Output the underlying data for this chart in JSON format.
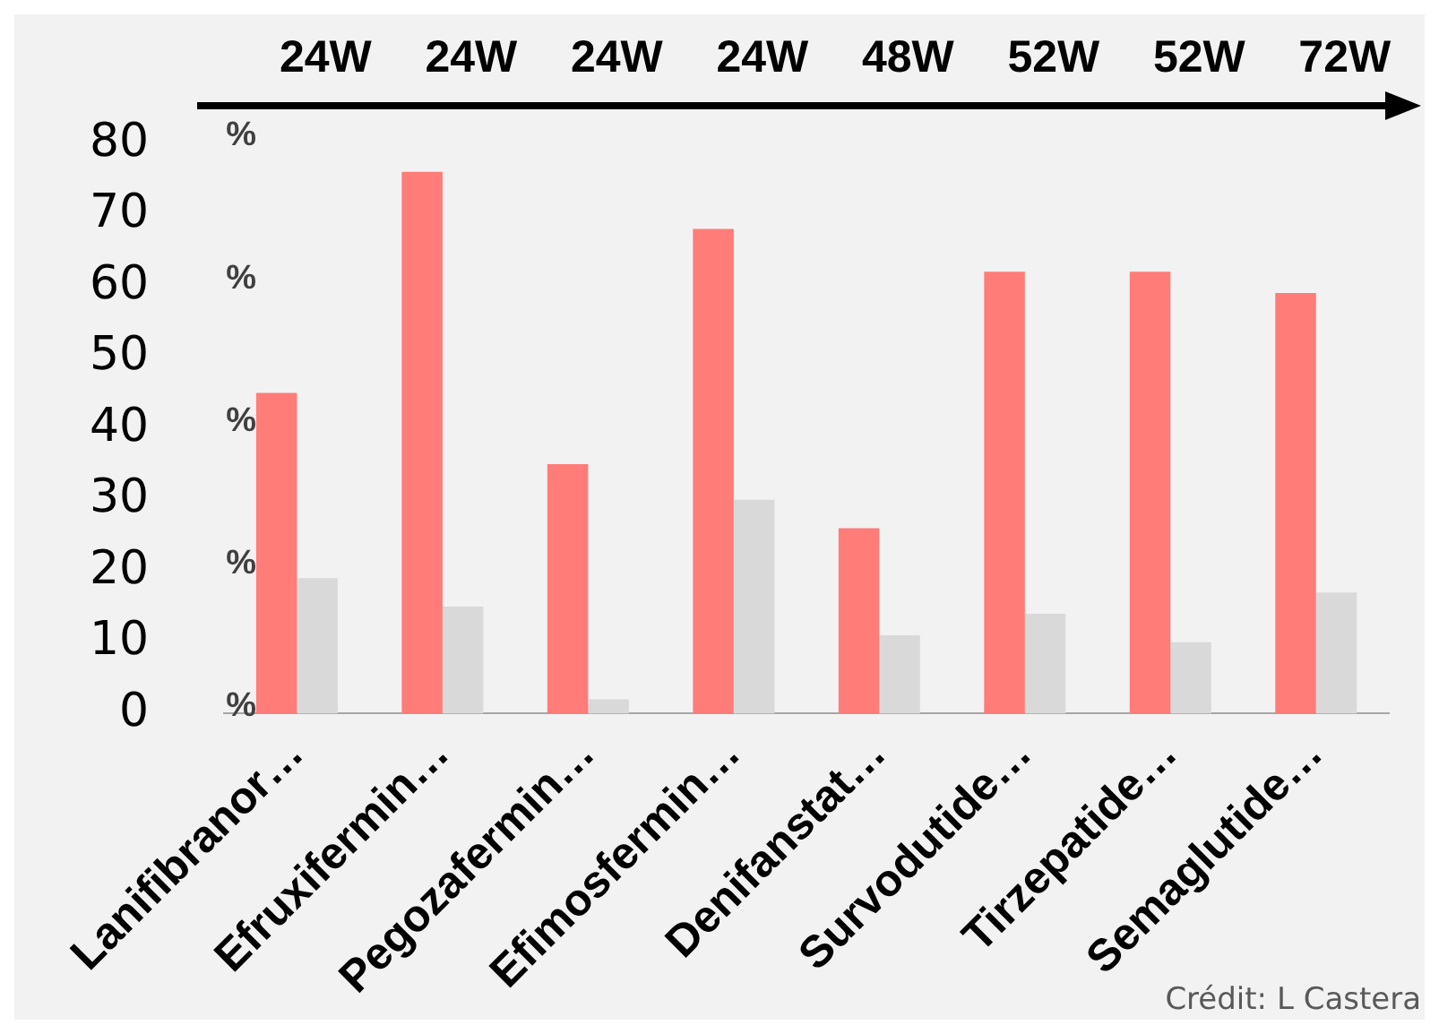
{
  "chart_data": {
    "type": "bar",
    "categories": [
      "Lanifibranor…",
      "Efruxifermin…",
      "Pegozafermin…",
      "Efimosfermin…",
      "Denifanstat…",
      "Survodutide…",
      "Tirzepatide…",
      "Semaglutide…"
    ],
    "series": [
      {
        "color": "#ff7c79",
        "values": [
          45,
          76,
          35,
          68,
          26,
          62,
          62,
          59
        ]
      },
      {
        "color": "#d9d9d9",
        "values": [
          19,
          15,
          2,
          30,
          11,
          14,
          10,
          17
        ]
      }
    ],
    "ylim": [
      0,
      80
    ],
    "yticks": [
      0,
      10,
      20,
      30,
      40,
      50,
      60,
      70,
      80
    ],
    "grid": false,
    "legend": false,
    "annotations": [
      "24W",
      "24W",
      "24W",
      "24W",
      "48W",
      "52W",
      "52W",
      "72W",
      "%",
      "%",
      "%",
      "%",
      "%",
      "Crédit: L Castera"
    ]
  }
}
